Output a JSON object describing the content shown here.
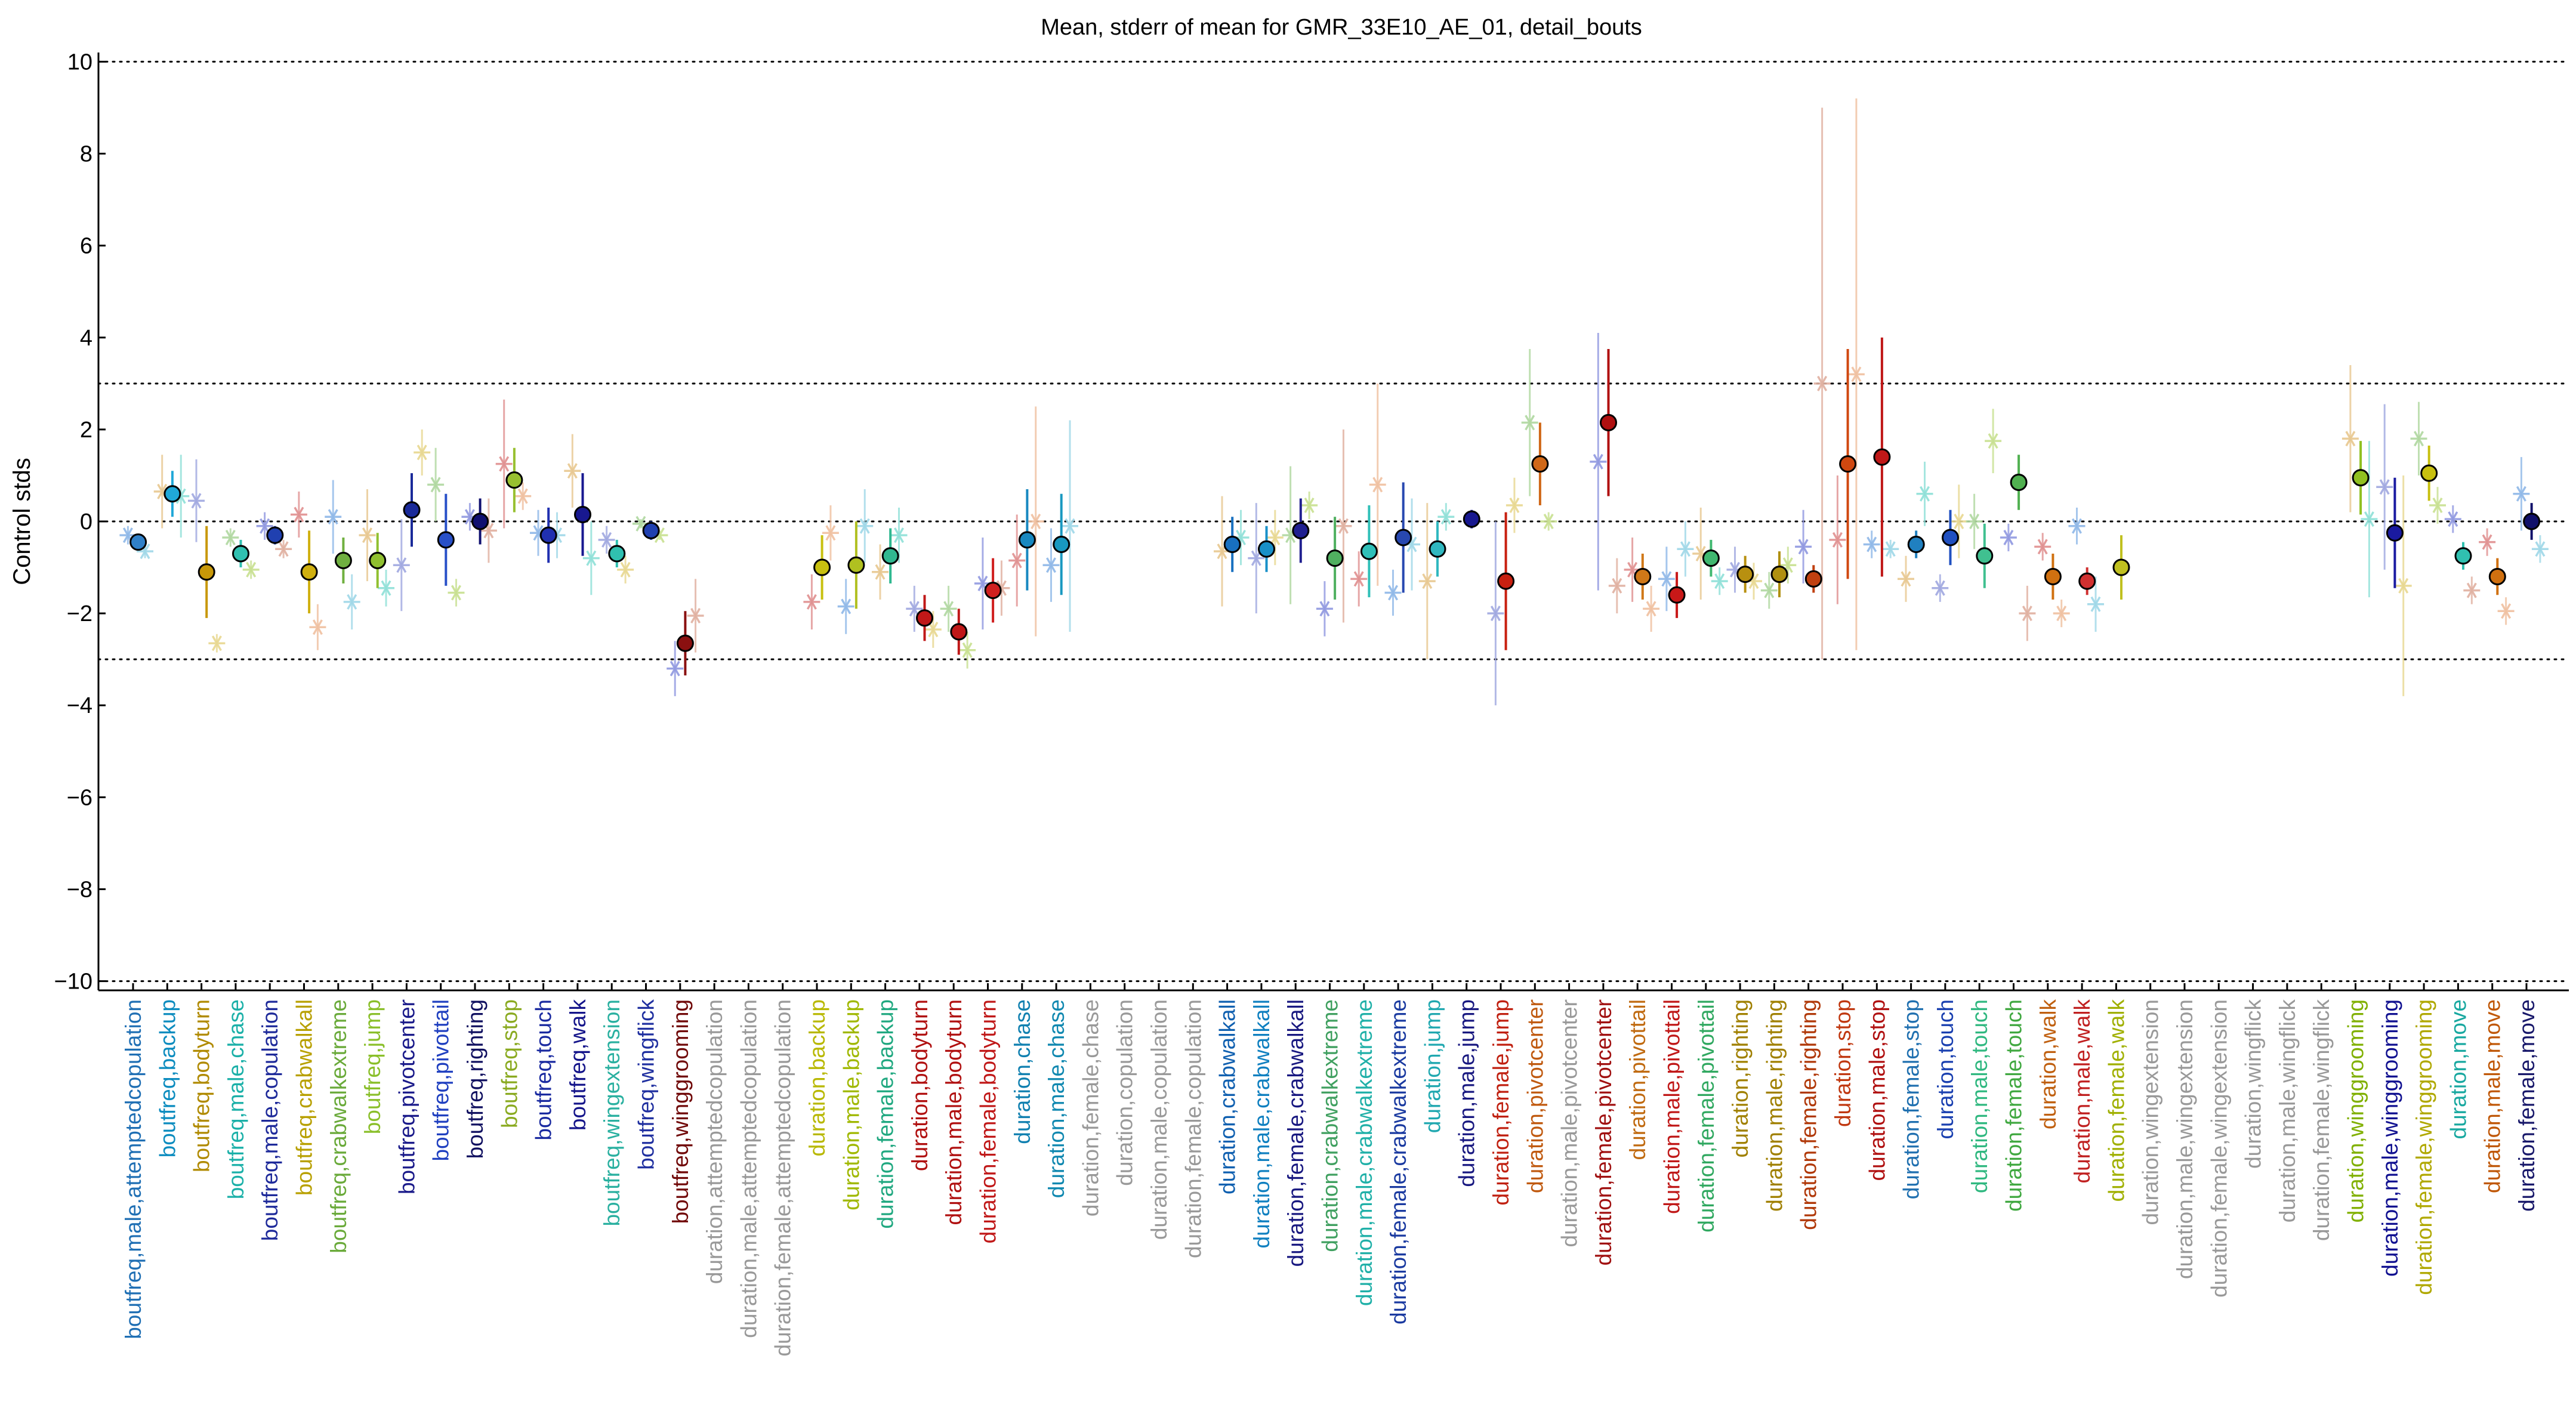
{
  "chart_data": {
    "type": "scatter",
    "title": "Mean, stderr of mean for GMR_33E10_AE_01, detail_bouts",
    "ylabel": "Control stds",
    "xlabel": "",
    "ylim": [
      -10.2,
      10.2
    ],
    "yticks": [
      -10,
      -8,
      -6,
      -4,
      -2,
      0,
      2,
      4,
      6,
      8,
      10
    ],
    "dotted_reference_lines": [
      -10,
      -3,
      0,
      3,
      10
    ],
    "grid": false,
    "legend": "none",
    "categories": [
      "boutfreq,male,attemptedcopulation",
      "boutfreq,backup",
      "boutfreq,bodyturn",
      "boutfreq,male,chase",
      "boutfreq,male,copulation",
      "boutfreq,crabwalkall",
      "boutfreq,crabwalkextreme",
      "boutfreq,jump",
      "boutfreq,pivotcenter",
      "boutfreq,pivottail",
      "boutfreq,righting",
      "boutfreq,stop",
      "boutfreq,touch",
      "boutfreq,walk",
      "boutfreq,wingextension",
      "boutfreq,wingflick",
      "boutfreq,winggrooming",
      "duration,attemptedcopulation",
      "duration,male,attemptedcopulation",
      "duration,female,attemptedcopulation",
      "duration,backup",
      "duration,male,backup",
      "duration,female,backup",
      "duration,bodyturn",
      "duration,male,bodyturn",
      "duration,female,bodyturn",
      "duration,chase",
      "duration,male,chase",
      "duration,female,chase",
      "duration,copulation",
      "duration,male,copulation",
      "duration,female,copulation",
      "duration,crabwalkall",
      "duration,male,crabwalkall",
      "duration,female,crabwalkall",
      "duration,crabwalkextreme",
      "duration,male,crabwalkextreme",
      "duration,female,crabwalkextreme",
      "duration,jump",
      "duration,male,jump",
      "duration,female,jump",
      "duration,pivotcenter",
      "duration,male,pivotcenter",
      "duration,female,pivotcenter",
      "duration,pivottail",
      "duration,male,pivottail",
      "duration,female,pivottail",
      "duration,righting",
      "duration,male,righting",
      "duration,female,righting",
      "duration,stop",
      "duration,male,stop",
      "duration,female,stop",
      "duration,touch",
      "duration,male,touch",
      "duration,female,touch",
      "duration,walk",
      "duration,male,walk",
      "duration,female,walk",
      "duration,wingextension",
      "duration,male,wingextension",
      "duration,female,wingextension",
      "duration,wingflick",
      "duration,male,wingflick",
      "duration,female,wingflick",
      "duration,winggrooming",
      "duration,male,winggrooming",
      "duration,female,winggrooming",
      "duration,move",
      "duration,male,move",
      "duration,female,move"
    ],
    "label_colors": [
      "#1f6fb4",
      "#0c8cbf",
      "#b08a00",
      "#1bb0a8",
      "#1e2a9a",
      "#b8a000",
      "#6aaa3a",
      "#8abf2a",
      "#1a1a8a",
      "#2040c0",
      "#101060",
      "#8aaa20",
      "#1a2aa0",
      "#14148a",
      "#2ab0a0",
      "#2030a0",
      "#700808",
      "#999999",
      "#999999",
      "#999999",
      "#b8b800",
      "#a0b800",
      "#20a880",
      "#b01010",
      "#b01010",
      "#c01818",
      "#1080b0",
      "#1088b0",
      "#999999",
      "#999999",
      "#999999",
      "#999999",
      "#1060b0",
      "#1080c0",
      "#181880",
      "#40a060",
      "#20b0a8",
      "#1a3aa0",
      "#20a8b0",
      "#181880",
      "#c02010",
      "#c05a10",
      "#999999",
      "#a01010",
      "#c06a10",
      "#c01818",
      "#30a860",
      "#a08000",
      "#a08000",
      "#b03808",
      "#c03810",
      "#b01010",
      "#2070b0",
      "#1a40b0",
      "#30b880",
      "#40a840",
      "#c06010",
      "#c02020",
      "#a0b000",
      "#999999",
      "#999999",
      "#999999",
      "#999999",
      "#999999",
      "#999999",
      "#80b000",
      "#101090",
      "#b0a800",
      "#18a8a0",
      "#c05808",
      "#18186a"
    ],
    "x_index": [
      0,
      1,
      2,
      3,
      4,
      5,
      6,
      7,
      8,
      9,
      10,
      11,
      12,
      13,
      14,
      15,
      16,
      17,
      18,
      19,
      20,
      21,
      22,
      23,
      24,
      25,
      26,
      27,
      28,
      29,
      30,
      31,
      32,
      33,
      34,
      35,
      36,
      37,
      38,
      39,
      40,
      41,
      42,
      43,
      44,
      45,
      46,
      47,
      48,
      49,
      50,
      51,
      52,
      53,
      54,
      55,
      56,
      57,
      58,
      59,
      60,
      61,
      62,
      63,
      64,
      65,
      66,
      67,
      68,
      69,
      70
    ],
    "means": [
      {
        "x": 0.15,
        "mean": -0.45,
        "err": 0.15,
        "color": "#3080c8"
      },
      {
        "x": 1.15,
        "mean": 0.6,
        "err": 0.5,
        "color": "#20a8d8"
      },
      {
        "x": 2.15,
        "mean": -1.1,
        "err": 1.0,
        "color": "#c89808"
      },
      {
        "x": 3.15,
        "mean": -0.7,
        "err": 0.3,
        "color": "#30c0b0"
      },
      {
        "x": 4.15,
        "mean": -0.3,
        "err": 0.2,
        "color": "#2040b0"
      },
      {
        "x": 5.15,
        "mean": -1.1,
        "err": 0.9,
        "color": "#d0b010"
      },
      {
        "x": 6.15,
        "mean": -0.85,
        "err": 0.5,
        "color": "#70b040"
      },
      {
        "x": 7.15,
        "mean": -0.85,
        "err": 0.6,
        "color": "#90c030"
      },
      {
        "x": 8.15,
        "mean": 0.25,
        "err": 0.8,
        "color": "#1a2a9a"
      },
      {
        "x": 9.15,
        "mean": -0.4,
        "err": 1.0,
        "color": "#2850c8"
      },
      {
        "x": 10.15,
        "mean": 0.0,
        "err": 0.5,
        "color": "#101070"
      },
      {
        "x": 11.15,
        "mean": 0.9,
        "err": 0.7,
        "color": "#98c030"
      },
      {
        "x": 12.15,
        "mean": -0.3,
        "err": 0.6,
        "color": "#2030b0"
      },
      {
        "x": 13.15,
        "mean": 0.15,
        "err": 0.9,
        "color": "#181890"
      },
      {
        "x": 14.15,
        "mean": -0.7,
        "err": 0.3,
        "color": "#30c0b0"
      },
      {
        "x": 15.15,
        "mean": -0.2,
        "err": 0.2,
        "color": "#2040b0"
      },
      {
        "x": 16.15,
        "mean": -2.65,
        "err": 0.7,
        "color": "#8a1010"
      },
      {
        "x": 20.15,
        "mean": -1.0,
        "err": 0.7,
        "color": "#c8c010"
      },
      {
        "x": 21.15,
        "mean": -0.95,
        "err": 0.95,
        "color": "#b0c020"
      },
      {
        "x": 22.15,
        "mean": -0.75,
        "err": 0.6,
        "color": "#30b890"
      },
      {
        "x": 23.15,
        "mean": -2.1,
        "err": 0.5,
        "color": "#c01818"
      },
      {
        "x": 24.15,
        "mean": -2.4,
        "err": 0.5,
        "color": "#c01818"
      },
      {
        "x": 25.15,
        "mean": -1.5,
        "err": 0.7,
        "color": "#d02020"
      },
      {
        "x": 26.15,
        "mean": -0.4,
        "err": 1.1,
        "color": "#1888c0"
      },
      {
        "x": 27.15,
        "mean": -0.5,
        "err": 1.1,
        "color": "#1898c0"
      },
      {
        "x": 32.15,
        "mean": -0.5,
        "err": 0.6,
        "color": "#1870c0"
      },
      {
        "x": 33.15,
        "mean": -0.6,
        "err": 0.5,
        "color": "#1890c8"
      },
      {
        "x": 34.15,
        "mean": -0.2,
        "err": 0.7,
        "color": "#202090"
      },
      {
        "x": 35.15,
        "mean": -0.8,
        "err": 0.9,
        "color": "#50b060"
      },
      {
        "x": 36.15,
        "mean": -0.65,
        "err": 1.0,
        "color": "#30c0b8"
      },
      {
        "x": 37.15,
        "mean": -0.35,
        "err": 1.2,
        "color": "#2848b0"
      },
      {
        "x": 38.15,
        "mean": -0.6,
        "err": 0.6,
        "color": "#30b8c0"
      },
      {
        "x": 39.15,
        "mean": 0.05,
        "err": 0.2,
        "color": "#181890"
      },
      {
        "x": 40.15,
        "mean": -1.3,
        "err": 1.5,
        "color": "#c82010"
      },
      {
        "x": 41.15,
        "mean": 1.25,
        "err": 0.9,
        "color": "#d06818"
      },
      {
        "x": 43.15,
        "mean": 2.15,
        "err": 1.6,
        "color": "#b01010"
      },
      {
        "x": 44.15,
        "mean": -1.2,
        "err": 0.5,
        "color": "#d07818"
      },
      {
        "x": 45.15,
        "mean": -1.6,
        "err": 0.5,
        "color": "#c81818"
      },
      {
        "x": 46.15,
        "mean": -0.8,
        "err": 0.4,
        "color": "#40b870"
      },
      {
        "x": 47.15,
        "mean": -1.15,
        "err": 0.4,
        "color": "#b89010"
      },
      {
        "x": 48.15,
        "mean": -1.15,
        "err": 0.5,
        "color": "#b09010"
      },
      {
        "x": 49.15,
        "mean": -1.25,
        "err": 0.3,
        "color": "#c04010"
      },
      {
        "x": 50.15,
        "mean": 1.25,
        "err": 2.5,
        "color": "#d04810"
      },
      {
        "x": 51.15,
        "mean": 1.4,
        "err": 2.6,
        "color": "#c01818"
      },
      {
        "x": 52.15,
        "mean": -0.5,
        "err": 0.3,
        "color": "#2080c0"
      },
      {
        "x": 53.15,
        "mean": -0.35,
        "err": 0.6,
        "color": "#2050c0"
      },
      {
        "x": 54.15,
        "mean": -0.75,
        "err": 0.7,
        "color": "#40c090"
      },
      {
        "x": 55.15,
        "mean": 0.85,
        "err": 0.6,
        "color": "#50b050"
      },
      {
        "x": 56.15,
        "mean": -1.2,
        "err": 0.5,
        "color": "#d07010"
      },
      {
        "x": 57.15,
        "mean": -1.3,
        "err": 0.3,
        "color": "#d03030"
      },
      {
        "x": 58.15,
        "mean": -1.0,
        "err": 0.7,
        "color": "#c0c020"
      },
      {
        "x": 65.15,
        "mean": 0.95,
        "err": 0.8,
        "color": "#90c020"
      },
      {
        "x": 66.15,
        "mean": -0.25,
        "err": 1.2,
        "color": "#1a1aa0"
      },
      {
        "x": 67.15,
        "mean": 1.05,
        "err": 0.6,
        "color": "#c8c010"
      },
      {
        "x": 68.15,
        "mean": -0.75,
        "err": 0.3,
        "color": "#30c0b0"
      },
      {
        "x": 69.15,
        "mean": -1.2,
        "err": 0.4,
        "color": "#d07010"
      },
      {
        "x": 70.15,
        "mean": 0.0,
        "err": 0.4,
        "color": "#10106a"
      }
    ],
    "individual_points": [
      {
        "x": -0.15,
        "y": -0.3,
        "err": 0.2
      },
      {
        "x": 0.35,
        "y": -0.65,
        "err": 0.15
      },
      {
        "x": 0.85,
        "y": 0.65,
        "err": 0.8
      },
      {
        "x": 1.4,
        "y": 0.55,
        "err": 0.9
      },
      {
        "x": 1.85,
        "y": 0.45,
        "err": 0.9
      },
      {
        "x": 2.45,
        "y": -2.65,
        "err": 0.2
      },
      {
        "x": 2.85,
        "y": -0.35,
        "err": 0.2
      },
      {
        "x": 3.45,
        "y": -1.05,
        "err": 0.2
      },
      {
        "x": 3.85,
        "y": -0.1,
        "err": 0.3
      },
      {
        "x": 4.4,
        "y": -0.6,
        "err": 0.2
      },
      {
        "x": 4.85,
        "y": 0.15,
        "err": 0.5
      },
      {
        "x": 5.4,
        "y": -2.3,
        "err": 0.5
      },
      {
        "x": 5.85,
        "y": 0.1,
        "err": 0.8
      },
      {
        "x": 6.4,
        "y": -1.75,
        "err": 0.6
      },
      {
        "x": 6.85,
        "y": -0.3,
        "err": 1.0
      },
      {
        "x": 7.4,
        "y": -1.45,
        "err": 0.4
      },
      {
        "x": 7.85,
        "y": -0.95,
        "err": 1.0
      },
      {
        "x": 8.45,
        "y": 1.5,
        "err": 0.5
      },
      {
        "x": 8.85,
        "y": 0.8,
        "err": 0.8
      },
      {
        "x": 9.45,
        "y": -1.55,
        "err": 0.3
      },
      {
        "x": 9.85,
        "y": 0.1,
        "err": 0.3
      },
      {
        "x": 10.4,
        "y": -0.2,
        "err": 0.7
      },
      {
        "x": 10.85,
        "y": 1.25,
        "err": 1.4
      },
      {
        "x": 11.4,
        "y": 0.55,
        "err": 0.3
      },
      {
        "x": 11.85,
        "y": -0.25,
        "err": 0.5
      },
      {
        "x": 12.4,
        "y": -0.3,
        "err": 0.5
      },
      {
        "x": 12.85,
        "y": 1.1,
        "err": 0.8
      },
      {
        "x": 13.4,
        "y": -0.8,
        "err": 0.8
      },
      {
        "x": 13.85,
        "y": -0.4,
        "err": 0.3
      },
      {
        "x": 14.4,
        "y": -1.05,
        "err": 0.3
      },
      {
        "x": 14.85,
        "y": -0.05,
        "err": 0.1
      },
      {
        "x": 15.4,
        "y": -0.3,
        "err": 0.1
      },
      {
        "x": 15.85,
        "y": -3.2,
        "err": 0.6
      },
      {
        "x": 16.45,
        "y": -2.05,
        "err": 0.8
      },
      {
        "x": 19.85,
        "y": -1.75,
        "err": 0.6
      },
      {
        "x": 20.4,
        "y": -0.25,
        "err": 0.6
      },
      {
        "x": 20.85,
        "y": -1.85,
        "err": 0.6
      },
      {
        "x": 21.4,
        "y": -0.1,
        "err": 0.8
      },
      {
        "x": 21.85,
        "y": -1.1,
        "err": 0.6
      },
      {
        "x": 22.4,
        "y": -0.3,
        "err": 0.6
      },
      {
        "x": 22.85,
        "y": -1.9,
        "err": 0.5
      },
      {
        "x": 23.4,
        "y": -2.35,
        "err": 0.4
      },
      {
        "x": 23.85,
        "y": -1.9,
        "err": 0.5
      },
      {
        "x": 24.4,
        "y": -2.8,
        "err": 0.4
      },
      {
        "x": 24.85,
        "y": -1.35,
        "err": 1.0
      },
      {
        "x": 25.4,
        "y": -1.45,
        "err": 0.6
      },
      {
        "x": 25.85,
        "y": -0.85,
        "err": 1.0
      },
      {
        "x": 26.4,
        "y": 0.0,
        "err": 2.5
      },
      {
        "x": 26.85,
        "y": -0.95,
        "err": 0.8
      },
      {
        "x": 27.4,
        "y": -0.1,
        "err": 2.3
      },
      {
        "x": 31.85,
        "y": -0.65,
        "err": 1.2
      },
      {
        "x": 32.4,
        "y": -0.35,
        "err": 0.6
      },
      {
        "x": 32.85,
        "y": -0.8,
        "err": 1.2
      },
      {
        "x": 33.4,
        "y": -0.35,
        "err": 0.6
      },
      {
        "x": 33.85,
        "y": -0.3,
        "err": 1.5
      },
      {
        "x": 34.4,
        "y": 0.35,
        "err": 0.3
      },
      {
        "x": 34.85,
        "y": -1.9,
        "err": 0.6
      },
      {
        "x": 35.4,
        "y": -0.1,
        "err": 2.1
      },
      {
        "x": 35.85,
        "y": -1.25,
        "err": 0.6
      },
      {
        "x": 36.4,
        "y": 0.8,
        "err": 2.2
      },
      {
        "x": 36.85,
        "y": -1.55,
        "err": 0.5
      },
      {
        "x": 37.4,
        "y": -0.5,
        "err": 1.0
      },
      {
        "x": 37.85,
        "y": -1.3,
        "err": 1.7
      },
      {
        "x": 38.4,
        "y": 0.1,
        "err": 0.3
      },
      {
        "x": 39.85,
        "y": -2.0,
        "err": 2.0
      },
      {
        "x": 40.4,
        "y": 0.35,
        "err": 0.6
      },
      {
        "x": 40.85,
        "y": 2.15,
        "err": 1.6
      },
      {
        "x": 41.4,
        "y": 0.0,
        "err": 0.2
      },
      {
        "x": 42.85,
        "y": 1.3,
        "err": 2.8
      },
      {
        "x": 43.4,
        "y": -1.4,
        "err": 0.6
      },
      {
        "x": 43.85,
        "y": -1.05,
        "err": 0.7
      },
      {
        "x": 44.4,
        "y": -1.9,
        "err": 0.5
      },
      {
        "x": 44.85,
        "y": -1.25,
        "err": 0.7
      },
      {
        "x": 45.4,
        "y": -0.6,
        "err": 0.6
      },
      {
        "x": 45.85,
        "y": -0.7,
        "err": 1.0
      },
      {
        "x": 46.4,
        "y": -1.3,
        "err": 0.3
      },
      {
        "x": 46.85,
        "y": -1.05,
        "err": 0.5
      },
      {
        "x": 47.4,
        "y": -1.3,
        "err": 0.4
      },
      {
        "x": 47.85,
        "y": -1.5,
        "err": 0.4
      },
      {
        "x": 48.4,
        "y": -0.95,
        "err": 0.4
      },
      {
        "x": 48.85,
        "y": -0.55,
        "err": 0.8
      },
      {
        "x": 49.4,
        "y": 3.0,
        "err": 6.0
      },
      {
        "x": 49.85,
        "y": -0.4,
        "err": 1.4
      },
      {
        "x": 50.4,
        "y": 3.2,
        "err": 6.0
      },
      {
        "x": 50.85,
        "y": -0.5,
        "err": 0.3
      },
      {
        "x": 51.4,
        "y": -0.6,
        "err": 0.2
      },
      {
        "x": 51.85,
        "y": -1.25,
        "err": 0.5
      },
      {
        "x": 52.4,
        "y": 0.6,
        "err": 0.7
      },
      {
        "x": 52.85,
        "y": -1.45,
        "err": 0.3
      },
      {
        "x": 53.4,
        "y": 0.0,
        "err": 0.8
      },
      {
        "x": 53.85,
        "y": 0.0,
        "err": 0.6
      },
      {
        "x": 54.4,
        "y": 1.75,
        "err": 0.7
      },
      {
        "x": 54.85,
        "y": -0.35,
        "err": 0.3
      },
      {
        "x": 55.4,
        "y": -2.0,
        "err": 0.6
      },
      {
        "x": 55.85,
        "y": -0.55,
        "err": 0.3
      },
      {
        "x": 56.4,
        "y": -2.0,
        "err": 0.3
      },
      {
        "x": 56.85,
        "y": -0.1,
        "err": 0.4
      },
      {
        "x": 57.4,
        "y": -1.8,
        "err": 0.6
      },
      {
        "x": 64.85,
        "y": 1.8,
        "err": 1.6
      },
      {
        "x": 65.4,
        "y": 0.05,
        "err": 1.7
      },
      {
        "x": 65.85,
        "y": 0.75,
        "err": 1.8
      },
      {
        "x": 66.4,
        "y": -1.4,
        "err": 2.4
      },
      {
        "x": 66.85,
        "y": 1.8,
        "err": 0.8
      },
      {
        "x": 67.4,
        "y": 0.35,
        "err": 0.4
      },
      {
        "x": 67.85,
        "y": 0.05,
        "err": 0.3
      },
      {
        "x": 68.4,
        "y": -1.5,
        "err": 0.3
      },
      {
        "x": 68.85,
        "y": -0.45,
        "err": 0.3
      },
      {
        "x": 69.4,
        "y": -1.95,
        "err": 0.3
      },
      {
        "x": 69.85,
        "y": 0.6,
        "err": 0.8
      },
      {
        "x": 70.4,
        "y": -0.6,
        "err": 0.3
      }
    ]
  }
}
